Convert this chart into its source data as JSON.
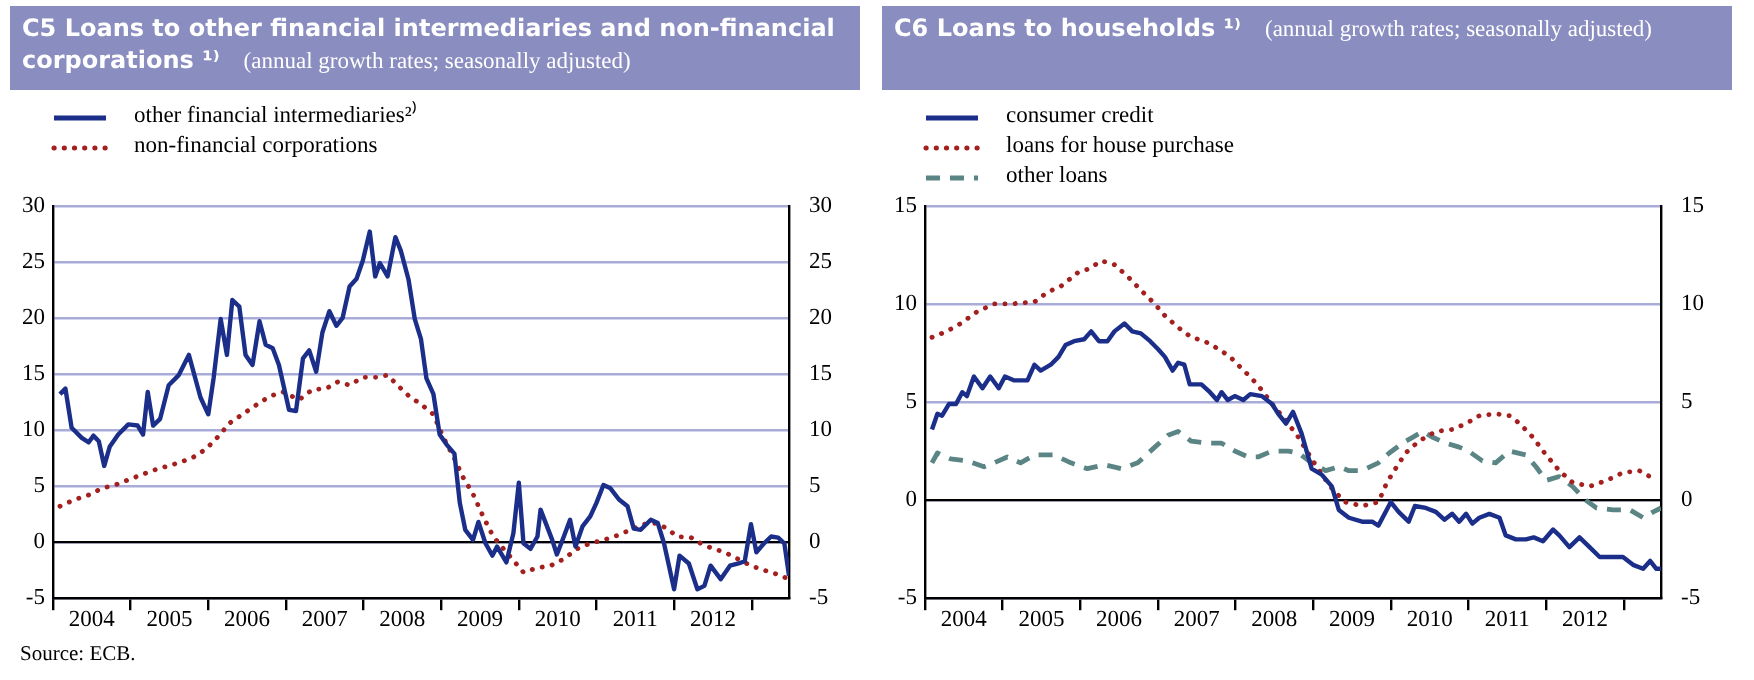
{
  "chart_data": [
    {
      "type": "line",
      "title": "C5 Loans to other financial intermediaries and non-financial corporations ¹⁾",
      "subtitle": "(annual growth rates; seasonally adjusted)",
      "xlim": [
        2004,
        2013.48
      ],
      "xticks": [
        {
          "value": 2004,
          "label": null
        },
        {
          "value": 2004.5,
          "label": "2004"
        },
        {
          "value": 2005,
          "label": null
        },
        {
          "value": 2005.5,
          "label": "2005"
        },
        {
          "value": 2006,
          "label": null
        },
        {
          "value": 2006.5,
          "label": "2006"
        },
        {
          "value": 2007,
          "label": null
        },
        {
          "value": 2007.5,
          "label": "2007"
        },
        {
          "value": 2008,
          "label": null
        },
        {
          "value": 2008.5,
          "label": "2008"
        },
        {
          "value": 2009,
          "label": null
        },
        {
          "value": 2009.5,
          "label": "2009"
        },
        {
          "value": 2010,
          "label": null
        },
        {
          "value": 2010.5,
          "label": "2010"
        },
        {
          "value": 2011,
          "label": null
        },
        {
          "value": 2011.5,
          "label": "2011"
        },
        {
          "value": 2012,
          "label": null
        },
        {
          "value": 2012.5,
          "label": "2012"
        },
        {
          "value": 2013,
          "label": null
        }
      ],
      "ylim": [
        -5,
        30
      ],
      "yticks": [
        -5,
        0,
        5,
        10,
        15,
        20,
        25,
        30
      ],
      "y2lim": [
        -5,
        30
      ],
      "y2ticks": [
        -5,
        0,
        5,
        10,
        15,
        20,
        25,
        30
      ],
      "grid": "y",
      "legend": "top left",
      "marker": "none",
      "ref_lines": [
        {
          "axis": "y",
          "value": 0,
          "color": "#000000"
        }
      ],
      "annotations": [
        "Source: ECB."
      ],
      "series": [
        {
          "name": "other financial intermediaries²⁾",
          "color": "#1b2f8a",
          "line_style": "solid",
          "x": [
            2004.09,
            2004.16,
            2004.24,
            2004.37,
            2004.46,
            2004.52,
            2004.59,
            2004.66,
            2004.73,
            2004.84,
            2004.97,
            2005.09,
            2005.16,
            2005.22,
            2005.29,
            2005.38,
            2005.49,
            2005.62,
            2005.75,
            2005.9,
            2006.0,
            2006.07,
            2006.16,
            2006.24,
            2006.31,
            2006.4,
            2006.48,
            2006.57,
            2006.66,
            2006.74,
            2006.83,
            2006.91,
            2007.04,
            2007.13,
            2007.22,
            2007.3,
            2007.39,
            2007.47,
            2007.56,
            2007.65,
            2007.73,
            2007.82,
            2007.91,
            2007.99,
            2008.08,
            2008.15,
            2008.21,
            2008.31,
            2008.41,
            2008.48,
            2008.58,
            2008.66,
            2008.74,
            2008.81,
            2008.9,
            2008.98,
            2009.07,
            2009.17,
            2009.24,
            2009.31,
            2009.41,
            2009.48,
            2009.57,
            2009.66,
            2009.72,
            2009.84,
            2009.93,
            2010.0,
            2010.06,
            2010.15,
            2010.24,
            2010.28,
            2010.43,
            2010.49,
            2010.58,
            2010.66,
            2010.73,
            2010.82,
            2010.92,
            2011.0,
            2011.09,
            2011.18,
            2011.29,
            2011.4,
            2011.48,
            2011.57,
            2011.7,
            2011.79,
            2011.87,
            2012.0,
            2012.07,
            2012.19,
            2012.3,
            2012.39,
            2012.47,
            2012.6,
            2012.72,
            2012.83,
            2012.91,
            2012.99,
            2013.06,
            2013.16,
            2013.25,
            2013.34,
            2013.42,
            2013.48
          ],
          "values": [
            13.2,
            13.7,
            10.2,
            9.3,
            8.9,
            9.5,
            9.0,
            6.8,
            8.5,
            9.6,
            10.5,
            10.4,
            9.6,
            13.4,
            10.4,
            11.0,
            14.0,
            14.9,
            16.7,
            12.9,
            11.4,
            14.7,
            19.9,
            16.7,
            21.6,
            21.0,
            16.7,
            15.8,
            19.7,
            17.6,
            17.3,
            15.8,
            11.8,
            11.7,
            16.4,
            17.1,
            15.2,
            18.7,
            20.6,
            19.3,
            20.0,
            22.8,
            23.5,
            25.1,
            27.7,
            23.7,
            24.9,
            23.7,
            27.2,
            26.0,
            23.4,
            19.9,
            18.1,
            14.6,
            13.2,
            9.6,
            8.7,
            7.9,
            3.5,
            1.1,
            0.2,
            1.8,
            -0.1,
            -1.2,
            -0.4,
            -1.8,
            0.8,
            5.3,
            -0.1,
            -0.6,
            0.5,
            2.9,
            0.2,
            -1.1,
            0.5,
            2.0,
            -0.4,
            1.4,
            2.3,
            3.5,
            5.1,
            4.8,
            3.8,
            3.2,
            1.2,
            1.1,
            2.0,
            1.7,
            -0.1,
            -4.2,
            -1.2,
            -1.9,
            -4.2,
            -3.9,
            -2.1,
            -3.3,
            -2.1,
            -1.9,
            -1.7,
            1.6,
            -0.9,
            -0.1,
            0.5,
            0.4,
            -0.1,
            -3.0
          ]
        },
        {
          "name": "non-financial corporations",
          "color": "#a3201f",
          "line_style": "dotted",
          "x": [
            2004.09,
            2004.28,
            2004.46,
            2004.63,
            2004.8,
            2005.06,
            2005.29,
            2005.58,
            2005.79,
            2005.97,
            2006.14,
            2006.27,
            2006.44,
            2006.61,
            2006.79,
            2006.96,
            2007.17,
            2007.34,
            2007.52,
            2007.67,
            2007.82,
            2007.99,
            2008.16,
            2008.31,
            2008.45,
            2008.59,
            2008.74,
            2008.9,
            2009.03,
            2009.16,
            2009.28,
            2009.41,
            2009.54,
            2009.67,
            2009.84,
            2010.06,
            2010.23,
            2010.41,
            2010.58,
            2010.75,
            2010.92,
            2011.1,
            2011.27,
            2011.44,
            2011.61,
            2011.78,
            2011.91,
            2012.04,
            2012.22,
            2012.34,
            2012.47,
            2012.65,
            2012.82,
            2012.99,
            2013.16,
            2013.34,
            2013.48
          ],
          "values": [
            3.2,
            3.8,
            4.2,
            4.8,
            5.1,
            5.8,
            6.4,
            7.0,
            7.5,
            8.3,
            9.5,
            10.6,
            11.4,
            12.2,
            13.0,
            13.4,
            12.7,
            13.6,
            13.7,
            14.3,
            14.0,
            14.7,
            14.7,
            14.9,
            13.9,
            13.0,
            12.3,
            11.4,
            9.3,
            7.6,
            5.8,
            4.3,
            2.3,
            0.5,
            -0.9,
            -2.7,
            -2.3,
            -2.1,
            -1.5,
            -0.6,
            -0.1,
            0.2,
            0.6,
            1.1,
            1.6,
            1.7,
            1.2,
            0.5,
            0.4,
            -0.1,
            -0.5,
            -0.9,
            -1.5,
            -2.1,
            -2.5,
            -2.9,
            -3.3
          ]
        }
      ]
    },
    {
      "type": "line",
      "title": "C6 Loans to households ¹⁾",
      "subtitle": "(annual growth rates; seasonally adjusted)",
      "xlim": [
        2004,
        2013.48
      ],
      "xticks": [
        {
          "value": 2004,
          "label": null
        },
        {
          "value": 2004.5,
          "label": "2004"
        },
        {
          "value": 2005,
          "label": null
        },
        {
          "value": 2005.5,
          "label": "2005"
        },
        {
          "value": 2006,
          "label": null
        },
        {
          "value": 2006.5,
          "label": "2006"
        },
        {
          "value": 2007,
          "label": null
        },
        {
          "value": 2007.5,
          "label": "2007"
        },
        {
          "value": 2008,
          "label": null
        },
        {
          "value": 2008.5,
          "label": "2008"
        },
        {
          "value": 2009,
          "label": null
        },
        {
          "value": 2009.5,
          "label": "2009"
        },
        {
          "value": 2010,
          "label": null
        },
        {
          "value": 2010.5,
          "label": "2010"
        },
        {
          "value": 2011,
          "label": null
        },
        {
          "value": 2011.5,
          "label": "2011"
        },
        {
          "value": 2012,
          "label": null
        },
        {
          "value": 2012.5,
          "label": "2012"
        },
        {
          "value": 2013,
          "label": null
        }
      ],
      "ylim": [
        -5,
        15
      ],
      "yticks": [
        -5,
        0,
        5,
        10,
        15
      ],
      "y2lim": [
        -5,
        15
      ],
      "y2ticks": [
        -5,
        0,
        5,
        10,
        15
      ],
      "grid": "y",
      "legend": "top left",
      "marker": "none",
      "ref_lines": [
        {
          "axis": "y",
          "value": 0,
          "color": "#000000"
        }
      ],
      "series": [
        {
          "name": "consumer credit",
          "color": "#1b2f8a",
          "line_style": "solid",
          "x": [
            2004.09,
            2004.16,
            2004.22,
            2004.31,
            2004.4,
            2004.48,
            2004.54,
            2004.63,
            2004.74,
            2004.84,
            2004.95,
            2005.03,
            2005.15,
            2005.32,
            2005.41,
            2005.49,
            2005.62,
            2005.72,
            2005.81,
            2005.92,
            2006.05,
            2006.14,
            2006.24,
            2006.35,
            2006.44,
            2006.57,
            2006.67,
            2006.78,
            2006.9,
            2007.0,
            2007.09,
            2007.19,
            2007.26,
            2007.34,
            2007.41,
            2007.56,
            2007.67,
            2007.76,
            2007.82,
            2007.9,
            2007.99,
            2008.1,
            2008.19,
            2008.34,
            2008.47,
            2008.55,
            2008.65,
            2008.74,
            2008.85,
            2008.98,
            2009.11,
            2009.24,
            2009.33,
            2009.46,
            2009.63,
            2009.76,
            2009.84,
            2010.0,
            2010.1,
            2010.23,
            2010.31,
            2010.45,
            2010.58,
            2010.69,
            2010.79,
            2010.88,
            2010.97,
            2011.05,
            2011.14,
            2011.27,
            2011.4,
            2011.48,
            2011.61,
            2011.74,
            2011.84,
            2011.96,
            2012.09,
            2012.17,
            2012.3,
            2012.43,
            2012.56,
            2012.69,
            2012.86,
            2012.99,
            2013.12,
            2013.25,
            2013.34,
            2013.42,
            2013.48
          ],
          "values": [
            3.6,
            4.4,
            4.3,
            4.9,
            4.9,
            5.5,
            5.3,
            6.3,
            5.7,
            6.3,
            5.7,
            6.3,
            6.1,
            6.1,
            6.9,
            6.6,
            6.9,
            7.3,
            7.9,
            8.1,
            8.2,
            8.6,
            8.1,
            8.1,
            8.6,
            9.0,
            8.6,
            8.5,
            8.1,
            7.7,
            7.3,
            6.6,
            7.0,
            6.9,
            5.9,
            5.9,
            5.5,
            5.1,
            5.5,
            5.1,
            5.3,
            5.1,
            5.4,
            5.3,
            4.9,
            4.4,
            3.9,
            4.5,
            3.4,
            1.6,
            1.3,
            0.7,
            -0.5,
            -0.9,
            -1.1,
            -1.1,
            -1.3,
            -0.1,
            -0.6,
            -1.1,
            -0.3,
            -0.4,
            -0.6,
            -1.0,
            -0.7,
            -1.1,
            -0.7,
            -1.2,
            -0.9,
            -0.7,
            -0.9,
            -1.8,
            -2.0,
            -2.0,
            -1.9,
            -2.1,
            -1.5,
            -1.8,
            -2.4,
            -1.9,
            -2.4,
            -2.9,
            -2.9,
            -2.9,
            -3.3,
            -3.5,
            -3.1,
            -3.5,
            -3.5
          ]
        },
        {
          "name": "loans for house purchase",
          "color": "#a3201f",
          "line_style": "dotted",
          "x": [
            2004.09,
            2004.28,
            2004.46,
            2004.67,
            2004.89,
            2005.1,
            2005.41,
            2005.58,
            2005.75,
            2005.97,
            2006.12,
            2006.27,
            2006.44,
            2006.61,
            2006.78,
            2006.96,
            2007.09,
            2007.26,
            2007.43,
            2007.6,
            2007.78,
            2007.93,
            2008.08,
            2008.21,
            2008.34,
            2008.47,
            2008.64,
            2008.81,
            2008.98,
            2009.11,
            2009.26,
            2009.41,
            2009.63,
            2009.84,
            2009.95,
            2010.06,
            2010.19,
            2010.36,
            2010.58,
            2010.79,
            2010.97,
            2011.14,
            2011.35,
            2011.53,
            2011.66,
            2011.83,
            2012.0,
            2012.17,
            2012.34,
            2012.56,
            2012.78,
            2012.99,
            2013.2,
            2013.38
          ],
          "values": [
            8.3,
            8.6,
            9.0,
            9.6,
            10.0,
            10.0,
            10.1,
            10.6,
            10.9,
            11.6,
            11.8,
            12.2,
            12.0,
            11.4,
            10.7,
            10.0,
            9.4,
            8.8,
            8.3,
            8.1,
            7.7,
            7.3,
            6.7,
            6.2,
            5.6,
            4.9,
            4.1,
            3.2,
            2.1,
            1.3,
            0.5,
            -0.1,
            -0.3,
            -0.1,
            0.9,
            1.6,
            2.4,
            3.0,
            3.5,
            3.6,
            3.9,
            4.3,
            4.4,
            4.3,
            3.9,
            3.2,
            2.3,
            1.5,
            0.9,
            0.7,
            1.0,
            1.4,
            1.5,
            1.1
          ]
        },
        {
          "name": "other loans",
          "color": "#5b8585",
          "line_style": "dashed",
          "x": [
            2004.09,
            2004.16,
            2004.33,
            2004.54,
            2004.76,
            2004.89,
            2005.06,
            2005.23,
            2005.41,
            2005.66,
            2005.88,
            2006.09,
            2006.31,
            2006.53,
            2006.74,
            2006.96,
            2007.13,
            2007.26,
            2007.43,
            2007.65,
            2007.82,
            2007.99,
            2008.16,
            2008.29,
            2008.47,
            2008.68,
            2008.81,
            2008.98,
            2009.16,
            2009.33,
            2009.46,
            2009.63,
            2009.84,
            2009.98,
            2010.15,
            2010.28,
            2010.41,
            2010.54,
            2010.71,
            2010.88,
            2011.0,
            2011.18,
            2011.35,
            2011.53,
            2011.74,
            2011.87,
            2012.0,
            2012.17,
            2012.34,
            2012.51,
            2012.65,
            2012.86,
            2013.08,
            2013.25,
            2013.38,
            2013.48
          ],
          "values": [
            1.9,
            2.4,
            2.1,
            2.0,
            1.7,
            1.9,
            2.2,
            1.9,
            2.3,
            2.3,
            1.9,
            1.6,
            1.8,
            1.6,
            1.9,
            2.7,
            3.3,
            3.5,
            3.0,
            2.9,
            2.9,
            2.5,
            2.2,
            2.2,
            2.5,
            2.5,
            2.4,
            1.9,
            1.5,
            1.7,
            1.5,
            1.5,
            1.9,
            2.4,
            2.9,
            3.2,
            3.5,
            3.2,
            2.9,
            2.7,
            2.5,
            2.0,
            1.9,
            2.5,
            2.3,
            1.7,
            1.0,
            1.2,
            0.7,
            0.0,
            -0.4,
            -0.5,
            -0.5,
            -0.9,
            -0.6,
            -0.4
          ]
        }
      ]
    }
  ]
}
